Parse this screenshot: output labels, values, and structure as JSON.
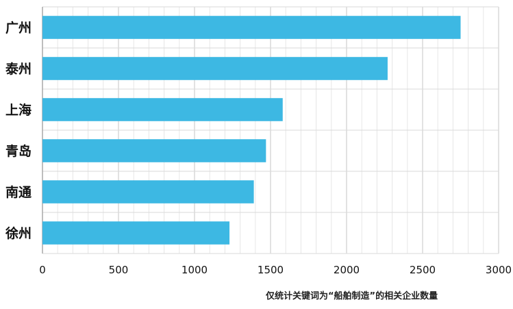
{
  "chart_data": {
    "type": "bar",
    "orientation": "horizontal",
    "categories": [
      "广州",
      "泰州",
      "上海",
      "青岛",
      "南通",
      "徐州"
    ],
    "values": [
      2750,
      2270,
      1580,
      1470,
      1390,
      1230
    ],
    "xlim": [
      0,
      3000
    ],
    "xticks": [
      "0",
      "500",
      "1000",
      "1500",
      "2000",
      "2500",
      "3000"
    ],
    "grid": true,
    "bar_color": "#3DB8E3",
    "note": "仅统计关键词为“船舶制造”的相关企业数量"
  }
}
